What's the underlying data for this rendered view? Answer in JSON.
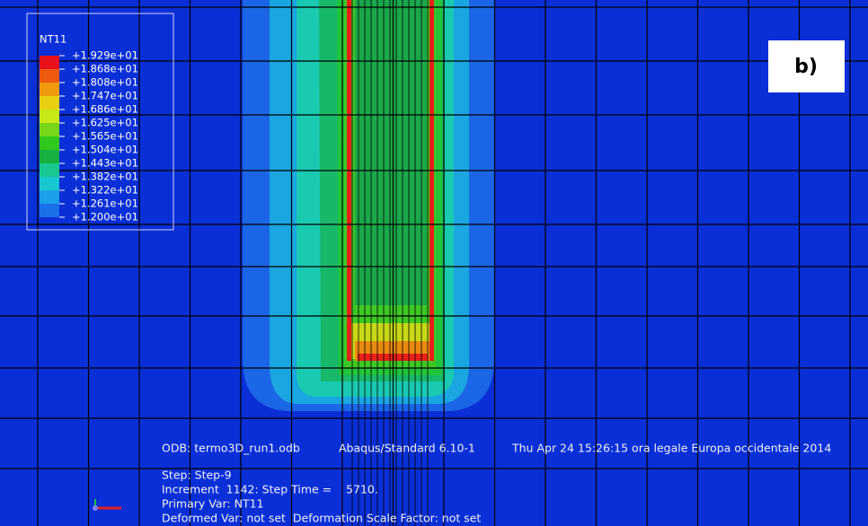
{
  "legend": {
    "title": "NT11",
    "labels": [
      "+1.929e+01",
      "+1.868e+01",
      "+1.808e+01",
      "+1.747e+01",
      "+1.686e+01",
      "+1.625e+01",
      "+1.565e+01",
      "+1.504e+01",
      "+1.443e+01",
      "+1.382e+01",
      "+1.322e+01",
      "+1.261e+01",
      "+1.200e+01"
    ]
  },
  "panel_label": "b)",
  "info": {
    "odb": "ODB: termo3D_run1.odb",
    "solver": "Abaqus/Standard 6.10-1",
    "date": "Thu Apr 24 15:26:15 ora legale Europa occidentale 2014",
    "step": "Step: Step-9",
    "increment": "Increment  1142: Step Time =    5710.",
    "primary_var": "Primary Var: NT11",
    "deformed_var": "Deformed Var: not set  Deformation Scale Factor: not set"
  }
}
